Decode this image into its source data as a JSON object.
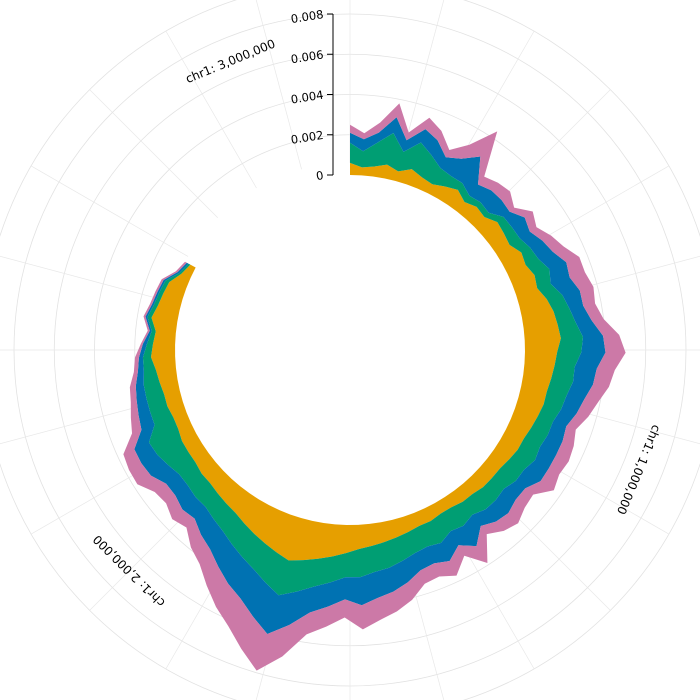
{
  "chart_data": {
    "type": "area",
    "subtype": "circular-stacked-area",
    "chromosome": "chr1",
    "position_labels": [
      "chr1: 1,000,000",
      "chr1: 2,000,000",
      "chr1: 3,000,000"
    ],
    "radial_axis": {
      "ticks": [
        "0",
        "0.002",
        "0.004",
        "0.006",
        "0.008"
      ],
      "tick_values": [
        0,
        0.002,
        0.004,
        0.006,
        0.008
      ],
      "range": [
        0,
        0.0088
      ]
    },
    "angular_axis": {
      "x_range": [
        0,
        3200000
      ],
      "start": "top",
      "direction": "clockwise"
    },
    "grid": true,
    "gap_start_x": 2650000,
    "series": [
      {
        "color": "#E69F00",
        "values": [
          0.0006,
          0.0004,
          0.0005,
          0.0007,
          0.0005,
          0.0008,
          0.0006,
          0.0005,
          0.0007,
          0.0009,
          0.0006,
          0.0008,
          0.0007,
          0.001,
          0.0009,
          0.0008,
          0.0011,
          0.001,
          0.0012,
          0.0011,
          0.0014,
          0.0016,
          0.0017,
          0.0018,
          0.0016,
          0.0015,
          0.0014,
          0.0013,
          0.0013,
          0.0012,
          0.0011,
          0.001,
          0.001,
          0.0009,
          0.0008,
          0.0008,
          0.0008,
          0.0007,
          0.0007,
          0.0006,
          0.0006,
          0.0007,
          0.0007,
          0.0008,
          0.0009,
          0.001,
          0.0011,
          0.0012,
          0.0014,
          0.0016,
          0.0018,
          0.002,
          0.0022,
          0.002,
          0.0018,
          0.0016,
          0.0014,
          0.0012,
          0.0011,
          0.001,
          0.0009,
          0.0009,
          0.0008,
          0.0008,
          0.0008,
          0.0007,
          0.0007,
          0.0008,
          0.0008,
          0.0009,
          0.001,
          0.0012,
          0.0011,
          0.001,
          0.0013,
          0.0011,
          0.001,
          0.0009,
          0.0005,
          0.0003
        ]
      },
      {
        "color": "#009E73",
        "values": [
          0.001,
          0.0008,
          0.0012,
          0.0016,
          0.001,
          0.0014,
          0.0012,
          0.0009,
          0.0006,
          0.0004,
          0.0004,
          0.0003,
          0.0003,
          0.0004,
          0.0005,
          0.0006,
          0.0005,
          0.0007,
          0.0008,
          0.0007,
          0.0008,
          0.0008,
          0.0009,
          0.0011,
          0.0012,
          0.001,
          0.0011,
          0.001,
          0.0009,
          0.0008,
          0.0009,
          0.0009,
          0.001,
          0.0009,
          0.001,
          0.0008,
          0.0009,
          0.001,
          0.0008,
          0.0011,
          0.001,
          0.0012,
          0.0011,
          0.0011,
          0.0012,
          0.0013,
          0.0013,
          0.0014,
          0.0012,
          0.0013,
          0.0014,
          0.0016,
          0.0018,
          0.0016,
          0.0014,
          0.0013,
          0.0012,
          0.0011,
          0.001,
          0.0009,
          0.001,
          0.0009,
          0.001,
          0.0012,
          0.0014,
          0.0016,
          0.001,
          0.0009,
          0.0009,
          0.0008,
          0.0006,
          0.0004,
          0.0003,
          0.0002,
          0.0002,
          0.0002,
          0.0002,
          0.0002,
          0.0001,
          0.0001
        ]
      },
      {
        "color": "#0072B2",
        "values": [
          0.0005,
          0.0006,
          0.0005,
          0.0008,
          0.0006,
          0.0007,
          0.0008,
          0.0006,
          0.001,
          0.0016,
          0.0007,
          0.0008,
          0.0009,
          0.0004,
          0.0008,
          0.0006,
          0.0007,
          0.0008,
          0.0009,
          0.001,
          0.0009,
          0.0007,
          0.0008,
          0.001,
          0.0012,
          0.0011,
          0.001,
          0.0009,
          0.0008,
          0.0007,
          0.0008,
          0.0009,
          0.0008,
          0.001,
          0.0006,
          0.0008,
          0.0009,
          0.0008,
          0.0007,
          0.0012,
          0.0008,
          0.001,
          0.0009,
          0.0009,
          0.0011,
          0.0012,
          0.0013,
          0.0014,
          0.0011,
          0.0012,
          0.0013,
          0.0017,
          0.002,
          0.0018,
          0.0016,
          0.0015,
          0.0013,
          0.0011,
          0.001,
          0.0008,
          0.0009,
          0.0008,
          0.0008,
          0.001,
          0.0009,
          0.0008,
          0.0007,
          0.0006,
          0.0005,
          0.0004,
          0.0003,
          0.0002,
          0.0002,
          0.0001,
          0.0001,
          0.0001,
          0.0001,
          0.0001,
          0.0001,
          0.0001
        ]
      },
      {
        "color": "#CC79A7",
        "values": [
          0.0004,
          0.0003,
          0.0005,
          0.0007,
          0.0004,
          0.0006,
          0.0005,
          0.0004,
          0.0008,
          0.0015,
          0.0005,
          0.0005,
          0.0006,
          0.0003,
          0.0005,
          0.0004,
          0.0005,
          0.0006,
          0.0007,
          0.0008,
          0.0007,
          0.0006,
          0.0006,
          0.0008,
          0.001,
          0.0009,
          0.0008,
          0.0007,
          0.0006,
          0.0005,
          0.0006,
          0.0007,
          0.0006,
          0.0008,
          0.0005,
          0.0006,
          0.0007,
          0.0006,
          0.0005,
          0.001,
          0.0006,
          0.0008,
          0.0007,
          0.0007,
          0.0009,
          0.001,
          0.0011,
          0.0012,
          0.0009,
          0.001,
          0.0011,
          0.0016,
          0.0019,
          0.0017,
          0.0015,
          0.0013,
          0.0011,
          0.0009,
          0.0008,
          0.0006,
          0.0007,
          0.0006,
          0.0007,
          0.0008,
          0.0007,
          0.0006,
          0.0005,
          0.0004,
          0.0003,
          0.0003,
          0.0002,
          0.0002,
          0.0001,
          0.0001,
          0.0001,
          0.0001,
          0.0001,
          0.0001,
          0.0001,
          0.0001
        ]
      }
    ]
  }
}
